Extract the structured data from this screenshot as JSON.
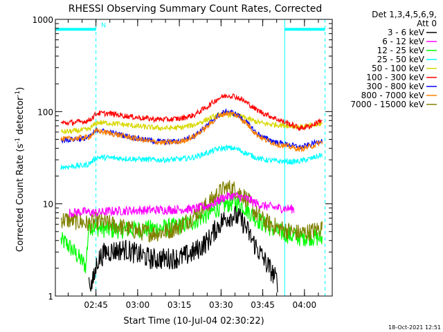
{
  "chart_data": {
    "type": "line",
    "title": "RHESSI Observing Summary Count Rates, Corrected",
    "xlabel": "Start Time (10-Jul-04 02:30:22)",
    "ylabel_main": "Corrected Count Rate (s",
    "ylabel_sup1": "-1",
    "ylabel_mid": " detector",
    "ylabel_sup2": "-1",
    "ylabel_end": ")",
    "timestamp": "18-Oct-2021 12:51",
    "x_unit": "minutes after 02:30:22",
    "xlim": [
      0,
      99.6
    ],
    "ylim": [
      1,
      1000
    ],
    "yscale": "log",
    "x_ticks": [
      {
        "value": 14.6,
        "label": "02:45"
      },
      {
        "value": 29.6,
        "label": "03:00"
      },
      {
        "value": 44.6,
        "label": "03:15"
      },
      {
        "value": 59.6,
        "label": "03:30"
      },
      {
        "value": 74.6,
        "label": "03:45"
      },
      {
        "value": 89.6,
        "label": "04:00"
      }
    ],
    "y_ticks": [
      {
        "value": 1,
        "label": "1"
      },
      {
        "value": 10,
        "label": "10"
      },
      {
        "value": 100,
        "label": "100"
      },
      {
        "value": 1000,
        "label": "1000"
      }
    ],
    "legend": {
      "placement": "right",
      "header_lines": [
        "Det 1,3,4,5,6,9,",
        "Att 0"
      ]
    },
    "series": [
      {
        "name": "3 - 6 keV",
        "color": "#000000",
        "x": [
          0,
          10,
          11,
          12,
          13,
          14,
          15,
          18,
          25,
          35,
          45,
          50,
          55,
          58,
          60,
          62,
          64,
          66,
          68,
          70,
          72,
          75,
          78,
          80,
          82
        ],
        "y": [
          null,
          null,
          null,
          1.5,
          1.3,
          1.6,
          2.4,
          3.0,
          3.2,
          2.5,
          2.6,
          3.0,
          4.0,
          5.5,
          6.5,
          7.2,
          7.5,
          7.0,
          6.0,
          4.5,
          3.5,
          2.5,
          1.8,
          1.4,
          null
        ]
      },
      {
        "name": "6 - 12 keV",
        "color": "#ff00ff",
        "x": [
          5,
          10,
          15,
          20,
          30,
          40,
          50,
          55,
          58,
          60,
          62,
          64,
          66,
          68,
          70,
          72,
          75,
          80,
          86
        ],
        "y": [
          8.0,
          8.2,
          8.0,
          8.3,
          8.5,
          8.6,
          8.8,
          9.5,
          10.5,
          11.5,
          12.0,
          12.2,
          12.0,
          11.5,
          11.0,
          10.2,
          9.5,
          9.0,
          8.8
        ]
      },
      {
        "name": "12 - 25 keV",
        "color": "#00ff00",
        "x": [
          2,
          4,
          6,
          8,
          10,
          11,
          12,
          15,
          20,
          30,
          40,
          45,
          50,
          55,
          58,
          60,
          62,
          64,
          66,
          68,
          70,
          72,
          75,
          80,
          85,
          88,
          92,
          96
        ],
        "y": [
          4.0,
          3.7,
          3.2,
          2.7,
          2.3,
          2.1,
          5.8,
          5.5,
          5.2,
          5.3,
          5.5,
          5.8,
          6.5,
          7.8,
          8.8,
          9.5,
          10.0,
          10.3,
          10.0,
          9.2,
          8.0,
          7.0,
          6.0,
          5.0,
          4.5,
          4.3,
          4.4,
          4.2
        ]
      },
      {
        "name": "25 - 50 keV",
        "color": "#00ffff",
        "x": [
          2,
          6,
          10,
          12,
          15,
          20,
          25,
          30,
          35,
          40,
          45,
          50,
          55,
          58,
          60,
          62,
          64,
          66,
          68,
          70,
          72,
          75,
          80,
          85,
          88,
          92,
          96
        ],
        "y": [
          25.0,
          25.5,
          26.0,
          27.0,
          32.0,
          31.5,
          31.0,
          30.5,
          30.0,
          30.0,
          30.5,
          32.0,
          36.0,
          39.0,
          40.0,
          40.5,
          40.0,
          38.5,
          36.0,
          34.0,
          32.0,
          30.0,
          29.0,
          28.5,
          29.0,
          31.0,
          34.0
        ]
      },
      {
        "name": "50 - 100 keV",
        "color": "#d8d800",
        "x": [
          2,
          6,
          10,
          12,
          15,
          20,
          25,
          30,
          35,
          40,
          45,
          50,
          55,
          58,
          60,
          62,
          64,
          66,
          68,
          70,
          72,
          75,
          80,
          85,
          88,
          92,
          96
        ],
        "y": [
          60.0,
          61.0,
          63.0,
          64.0,
          76.0,
          75.0,
          72.0,
          69.0,
          67.0,
          66.0,
          67.0,
          72.0,
          83.0,
          90.0,
          93.0,
          94.0,
          93.0,
          90.0,
          86.0,
          82.0,
          78.0,
          74.0,
          72.0,
          70.0,
          68.0,
          70.0,
          74.0
        ]
      },
      {
        "name": "100 - 300 keV",
        "color": "#ff0000",
        "x": [
          2,
          6,
          10,
          12,
          15,
          20,
          25,
          30,
          35,
          40,
          45,
          50,
          55,
          58,
          60,
          62,
          64,
          66,
          68,
          70,
          72,
          75,
          80,
          85,
          88,
          92,
          96
        ],
        "y": [
          75.0,
          76.0,
          78.0,
          80.0,
          96.0,
          95.0,
          90.0,
          86.0,
          83.0,
          82.0,
          84.0,
          92.0,
          115.0,
          135.0,
          145.0,
          150.0,
          148.0,
          140.0,
          130.0,
          118.0,
          106.0,
          96.0,
          82.0,
          72.0,
          66.0,
          70.0,
          82.0
        ]
      },
      {
        "name": "300 - 800 keV",
        "color": "#0000ff",
        "x": [
          2,
          6,
          10,
          12,
          15,
          20,
          25,
          30,
          35,
          40,
          45,
          50,
          55,
          58,
          60,
          62,
          64,
          66,
          68,
          70,
          72,
          75,
          80,
          85,
          88,
          92,
          96
        ],
        "y": [
          49.0,
          50.0,
          51.0,
          52.0,
          63.0,
          59.0,
          55.0,
          51.0,
          48.0,
          47.0,
          48.0,
          55.0,
          72.0,
          88.0,
          96.0,
          100.0,
          97.0,
          90.0,
          80.0,
          70.0,
          60.0,
          52.0,
          46.0,
          43.0,
          41.0,
          44.0,
          49.0
        ]
      },
      {
        "name": "800 - 7000 keV",
        "color": "#ff8000",
        "x": [
          2,
          6,
          10,
          12,
          15,
          20,
          25,
          30,
          35,
          40,
          45,
          50,
          55,
          58,
          60,
          62,
          64,
          66,
          68,
          70,
          72,
          75,
          80,
          85,
          88,
          92,
          96
        ],
        "y": [
          50.0,
          51.0,
          52.0,
          53.0,
          62.0,
          58.0,
          54.0,
          50.0,
          47.0,
          46.0,
          47.0,
          54.0,
          70.0,
          86.0,
          93.0,
          97.0,
          94.0,
          88.0,
          78.0,
          68.0,
          58.0,
          50.0,
          44.0,
          41.0,
          39.0,
          42.0,
          47.0
        ]
      },
      {
        "name": "7000 - 15000 keV",
        "color": "#808000",
        "x": [
          2,
          6,
          10,
          12,
          15,
          20,
          25,
          30,
          35,
          40,
          45,
          50,
          55,
          58,
          60,
          62,
          64,
          66,
          68,
          70,
          72,
          75,
          80,
          85,
          88,
          92,
          96
        ],
        "y": [
          6.8,
          6.6,
          6.3,
          6.0,
          6.5,
          6.0,
          5.5,
          5.0,
          4.8,
          5.0,
          5.8,
          7.5,
          10.0,
          12.5,
          14.0,
          15.0,
          14.5,
          13.5,
          12.0,
          10.0,
          8.0,
          6.5,
          5.5,
          5.0,
          4.8,
          5.0,
          5.5
        ]
      }
    ],
    "annotations": {
      "night_bars": [
        {
          "x_start": 0,
          "x_end": 14.6,
          "level": 780
        },
        {
          "x_start": 82.5,
          "x_end": 97.0,
          "level": 780
        }
      ],
      "night_bar_color": "#00ffff",
      "n_label": "N",
      "n_label_x": 16.5,
      "n_label_y": 820,
      "dashed_vlines": [
        14.6,
        97.0
      ],
      "solid_vlines": [
        82.5
      ],
      "vline_color": "#00ffff"
    }
  }
}
